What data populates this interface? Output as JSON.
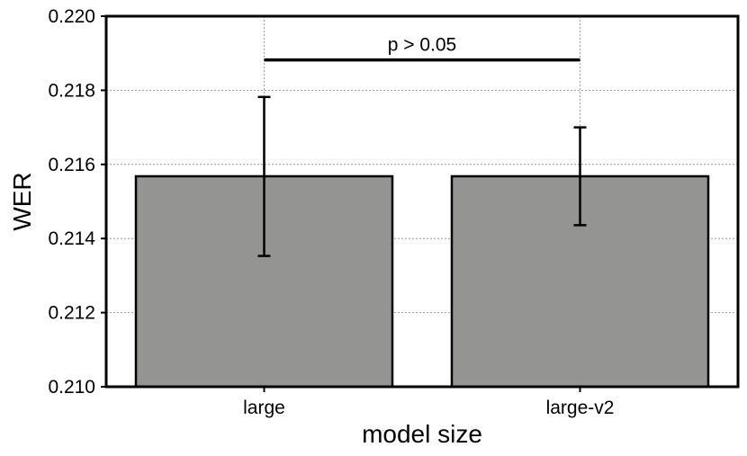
{
  "chart_data": {
    "type": "bar",
    "categories": [
      "large",
      "large-v2"
    ],
    "values": [
      0.21568,
      0.21568
    ],
    "error_bars": [
      {
        "low": 0.21353,
        "high": 0.21782
      },
      {
        "low": 0.21436,
        "high": 0.217
      }
    ],
    "xlabel": "model size",
    "ylabel": "WER",
    "ylim": [
      0.21,
      0.22
    ],
    "yticks": [
      "0.210",
      "0.212",
      "0.214",
      "0.216",
      "0.218",
      "0.220"
    ],
    "ytick_values": [
      0.21,
      0.212,
      0.214,
      0.216,
      0.218,
      0.22
    ],
    "grid": true,
    "significance": {
      "between": [
        "large",
        "large-v2"
      ],
      "level": 0.21882,
      "label": "p > 0.05"
    },
    "colors": {
      "bar": "#949592",
      "edge": "#000000",
      "grid": "#888888"
    }
  }
}
